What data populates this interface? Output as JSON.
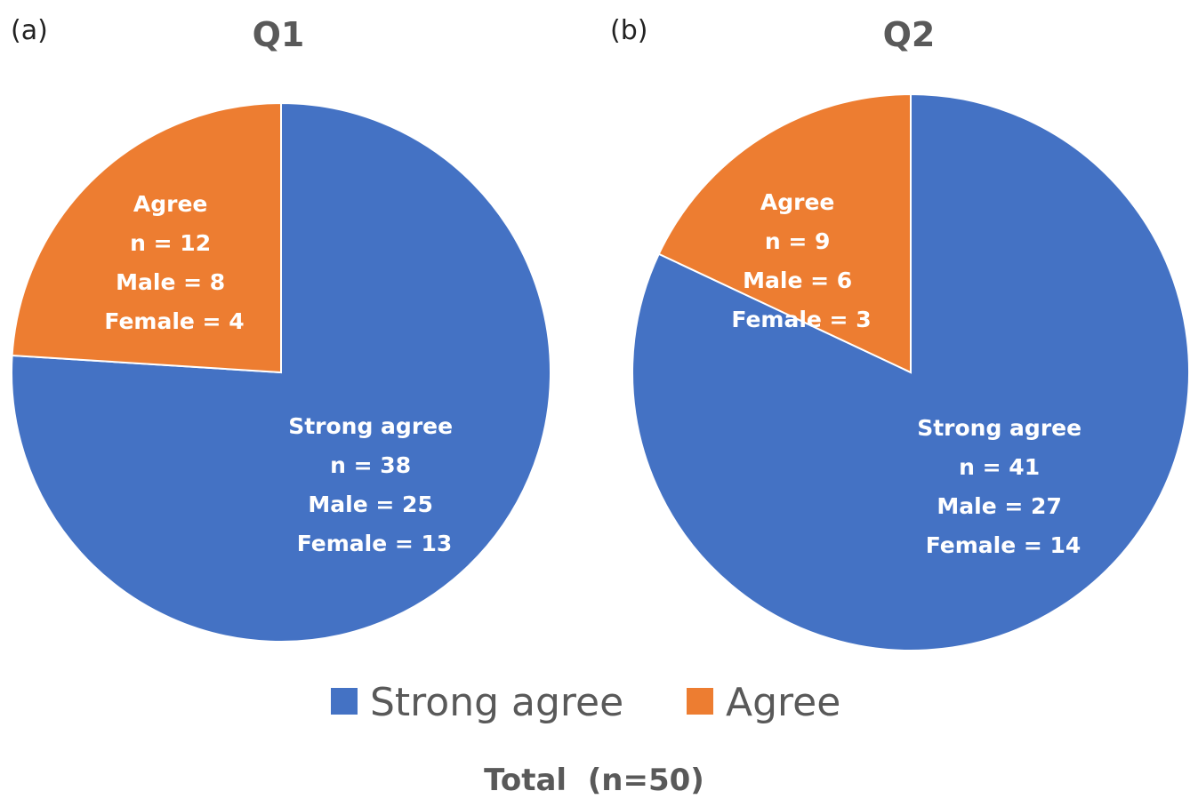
{
  "footer": {
    "total": "Total  (n=50)"
  },
  "legend": [
    {
      "label": "Strong agree",
      "color": "#4472C4"
    },
    {
      "label": "Agree",
      "color": "#ED7D31"
    }
  ],
  "chart_data": [
    {
      "type": "pie",
      "panel": "(a)",
      "title": "Q1",
      "slices": [
        {
          "name": "Strong agree",
          "value": 38,
          "color": "#4472C4",
          "lines": [
            "Strong agree",
            "n = 38",
            "Male = 25",
            "Female = 13"
          ]
        },
        {
          "name": "Agree",
          "value": 12,
          "color": "#ED7D31",
          "lines": [
            "Agree",
            "n = 12",
            "Male = 8",
            "Female = 4"
          ]
        }
      ]
    },
    {
      "type": "pie",
      "panel": "(b)",
      "title": "Q2",
      "slices": [
        {
          "name": "Strong agree",
          "value": 41,
          "color": "#4472C4",
          "lines": [
            "Strong agree",
            "n = 41",
            "Male = 27",
            "Female = 14"
          ]
        },
        {
          "name": "Agree",
          "value": 9,
          "color": "#ED7D31",
          "lines": [
            "Agree",
            "n = 9",
            "Male = 6",
            "Female = 3"
          ]
        }
      ]
    }
  ]
}
